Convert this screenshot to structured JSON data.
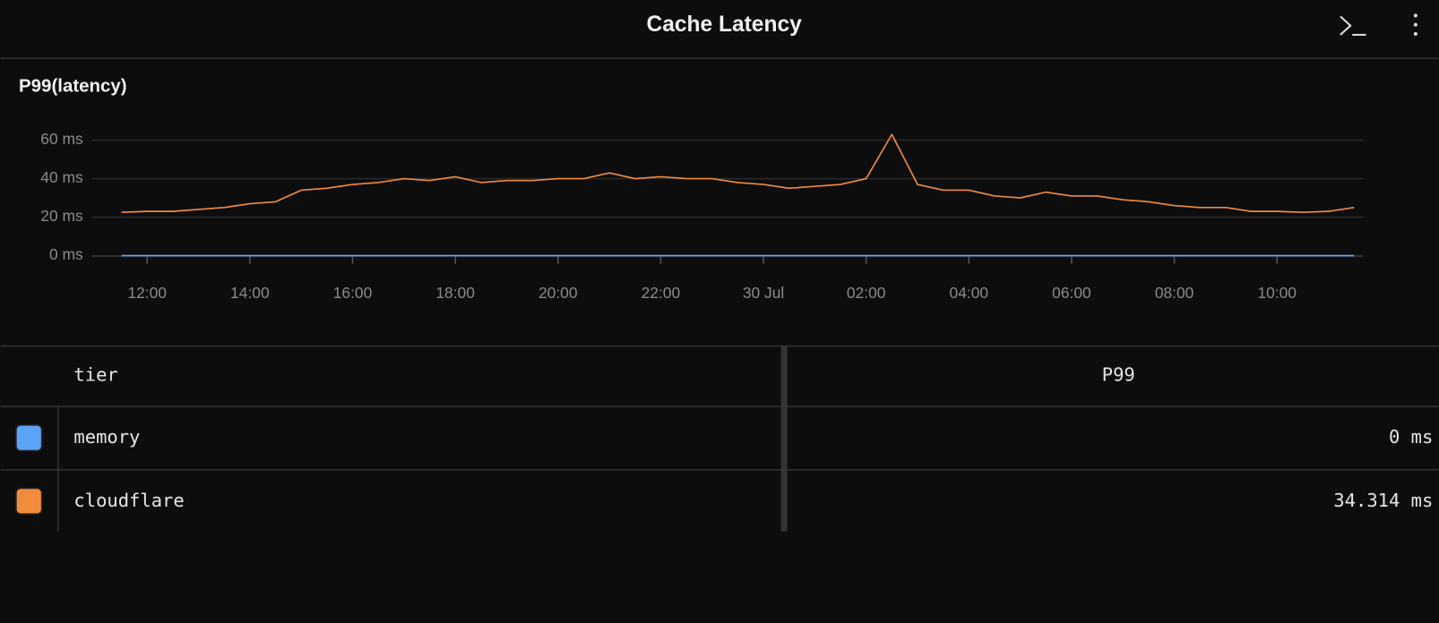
{
  "header": {
    "title": "Cache Latency"
  },
  "chart_data": {
    "type": "line",
    "title": "P99(latency)",
    "x": [
      11.5,
      12,
      12.5,
      13,
      13.5,
      14,
      14.5,
      15,
      15.5,
      16,
      16.5,
      17,
      17.5,
      18,
      18.5,
      19,
      19.5,
      20,
      20.5,
      21,
      21.5,
      22,
      22.5,
      23,
      23.5,
      24,
      24.5,
      25,
      25.5,
      26,
      26.5,
      27,
      27.5,
      28,
      28.5,
      29,
      29.5,
      30,
      30.5,
      31,
      31.5,
      32,
      32.5,
      33,
      33.5,
      34,
      34.5,
      35,
      35.5
    ],
    "series": [
      {
        "name": "memory",
        "color": "#5ba3f5",
        "values": [
          0,
          0,
          0,
          0,
          0,
          0,
          0,
          0,
          0,
          0,
          0,
          0,
          0,
          0,
          0,
          0,
          0,
          0,
          0,
          0,
          0,
          0,
          0,
          0,
          0,
          0,
          0,
          0,
          0,
          0,
          0,
          0,
          0,
          0,
          0,
          0,
          0,
          0,
          0,
          0,
          0,
          0,
          0,
          0,
          0,
          0,
          0,
          0,
          0
        ]
      },
      {
        "name": "cloudflare",
        "color": "#f28c3c",
        "values": [
          22.5,
          23,
          23,
          24,
          25,
          27,
          28,
          34,
          35,
          37,
          38,
          40,
          39,
          41,
          38,
          39,
          39,
          40,
          40,
          43,
          40,
          41,
          40,
          40,
          38,
          37,
          35,
          36,
          37,
          40,
          63,
          37,
          34,
          34,
          31,
          30,
          33,
          31,
          31,
          29,
          28,
          26,
          25,
          25,
          23,
          23,
          22.5,
          23,
          25
        ]
      }
    ],
    "xlim": [
      10.93,
      35.68
    ],
    "ylim": [
      0,
      65
    ],
    "xticks": [
      {
        "value": 12,
        "label": "12:00"
      },
      {
        "value": 14,
        "label": "14:00"
      },
      {
        "value": 16,
        "label": "16:00"
      },
      {
        "value": 18,
        "label": "18:00"
      },
      {
        "value": 20,
        "label": "20:00"
      },
      {
        "value": 22,
        "label": "22:00"
      },
      {
        "value": 24,
        "label": "30 Jul"
      },
      {
        "value": 26,
        "label": "02:00"
      },
      {
        "value": 28,
        "label": "04:00"
      },
      {
        "value": 30,
        "label": "06:00"
      },
      {
        "value": 32,
        "label": "08:00"
      },
      {
        "value": 34,
        "label": "10:00"
      }
    ],
    "yticks": [
      {
        "value": 0,
        "label": "0 ms"
      },
      {
        "value": 20,
        "label": "20 ms"
      },
      {
        "value": 40,
        "label": "40 ms"
      },
      {
        "value": 60,
        "label": "60 ms"
      }
    ],
    "grid": true
  },
  "table": {
    "columns": [
      "tier",
      "P99"
    ],
    "values": [
      "0 ms",
      "34.314 ms"
    ]
  }
}
